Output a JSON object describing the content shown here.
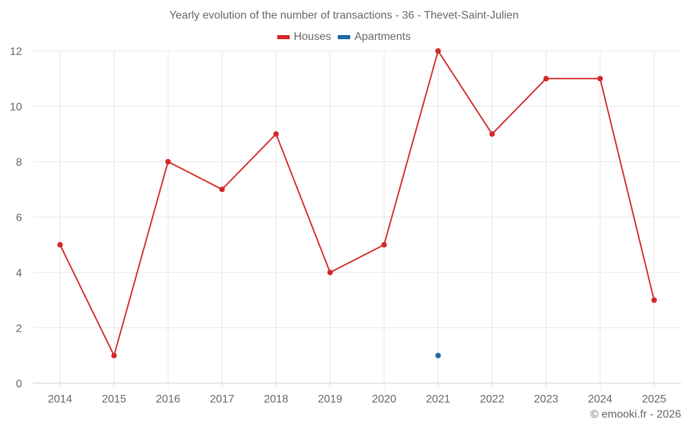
{
  "title": "Yearly evolution of the number of transactions - 36 - Thevet-Saint-Julien",
  "legend": [
    {
      "label": "Houses",
      "color": "#d62728"
    },
    {
      "label": "Apartments",
      "color": "#1f6aa5"
    }
  ],
  "footer": "© emooki.fr - 2026",
  "chart_data": {
    "type": "line",
    "title": "Yearly evolution of the number of transactions - 36 - Thevet-Saint-Julien",
    "xlabel": "",
    "ylabel": "",
    "categories": [
      "2014",
      "2015",
      "2016",
      "2017",
      "2018",
      "2019",
      "2020",
      "2021",
      "2022",
      "2023",
      "2024",
      "2025"
    ],
    "series": [
      {
        "name": "Houses",
        "color": "#d62728",
        "values": [
          5,
          1,
          8,
          7,
          9,
          4,
          5,
          12,
          9,
          11,
          11,
          3
        ]
      },
      {
        "name": "Apartments",
        "color": "#1f6aa5",
        "values": [
          null,
          null,
          null,
          null,
          null,
          null,
          null,
          1,
          null,
          null,
          null,
          null
        ]
      }
    ],
    "ylim": [
      0,
      12
    ],
    "yticks": [
      0,
      2,
      4,
      6,
      8,
      10,
      12
    ],
    "grid": true,
    "legend_position": "top"
  }
}
